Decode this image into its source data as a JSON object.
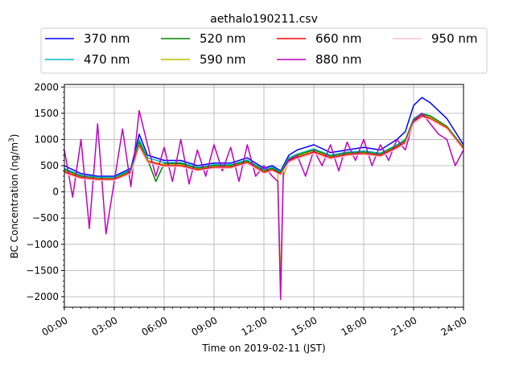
{
  "chart_data": {
    "type": "line",
    "title": "aethalo190211.csv",
    "xlabel": "Time on 2019-02-11 (JST)",
    "ylabel": "BC Concentration (ng/m",
    "ylabel_sup": "3",
    "ylabel_close": ")",
    "xlim": [
      "00:00",
      "24:00"
    ],
    "ylim": [
      -2200,
      2050
    ],
    "x_ticks": [
      "00:00",
      "03:00",
      "06:00",
      "09:00",
      "12:00",
      "15:00",
      "18:00",
      "21:00",
      "24:00"
    ],
    "y_ticks": [
      "2000",
      "1500",
      "1000",
      "500",
      "0",
      "−500",
      "−1000",
      "−1500",
      "−2000"
    ],
    "y_tick_values": [
      2000,
      1500,
      1000,
      500,
      0,
      -500,
      -1000,
      -1500,
      -2000
    ],
    "grid": true,
    "legend_position": "top-center",
    "series": [
      {
        "name": "370 nm",
        "color": "#0000ff",
        "x": [
          "00:00",
          "01:00",
          "02:00",
          "03:00",
          "04:00",
          "04:30",
          "05:00",
          "06:00",
          "07:00",
          "08:00",
          "09:00",
          "10:00",
          "11:00",
          "12:00",
          "12:30",
          "13:00",
          "13:30",
          "14:00",
          "15:00",
          "16:00",
          "17:00",
          "18:00",
          "19:00",
          "20:00",
          "20:30",
          "21:00",
          "21:30",
          "22:00",
          "23:00",
          "24:00"
        ],
        "values": [
          500,
          350,
          300,
          300,
          450,
          1100,
          700,
          600,
          600,
          500,
          550,
          550,
          650,
          450,
          500,
          400,
          700,
          800,
          900,
          750,
          800,
          850,
          800,
          1000,
          1150,
          1650,
          1800,
          1700,
          1400,
          900
        ]
      },
      {
        "name": "470 nm",
        "color": "#00bfbf",
        "x": [
          "00:00",
          "01:00",
          "02:00",
          "03:00",
          "04:00",
          "04:30",
          "05:00",
          "06:00",
          "07:00",
          "08:00",
          "09:00",
          "10:00",
          "11:00",
          "12:00",
          "12:30",
          "13:00",
          "13:30",
          "14:00",
          "15:00",
          "16:00",
          "17:00",
          "18:00",
          "19:00",
          "20:00",
          "20:30",
          "21:00",
          "21:30",
          "22:00",
          "23:00",
          "24:00"
        ],
        "values": [
          450,
          320,
          280,
          280,
          420,
          1000,
          650,
          560,
          560,
          470,
          520,
          520,
          610,
          420,
          470,
          380,
          650,
          720,
          820,
          700,
          760,
          780,
          740,
          900,
          1000,
          1400,
          1500,
          1450,
          1250,
          850
        ]
      },
      {
        "name": "520 nm",
        "color": "#008000",
        "x": [
          "00:00",
          "01:00",
          "02:00",
          "03:00",
          "04:00",
          "04:30",
          "05:00",
          "05:30",
          "06:00",
          "07:00",
          "08:00",
          "09:00",
          "10:00",
          "11:00",
          "12:00",
          "12:30",
          "13:00",
          "13:30",
          "14:00",
          "15:00",
          "16:00",
          "17:00",
          "18:00",
          "19:00",
          "20:00",
          "20:30",
          "21:00",
          "21:30",
          "22:00",
          "23:00",
          "24:00"
        ],
        "values": [
          420,
          300,
          260,
          260,
          400,
          950,
          620,
          200,
          540,
          540,
          450,
          500,
          500,
          590,
          400,
          450,
          360,
          620,
          700,
          800,
          680,
          740,
          760,
          720,
          880,
          980,
          1380,
          1480,
          1450,
          1250,
          850
        ]
      },
      {
        "name": "590 nm",
        "color": "#bfbf00",
        "x": [
          "00:00",
          "01:00",
          "02:00",
          "03:00",
          "04:00",
          "04:30",
          "05:00",
          "06:00",
          "07:00",
          "08:00",
          "09:00",
          "10:00",
          "11:00",
          "12:00",
          "12:30",
          "12:50",
          "13:00",
          "13:10",
          "13:30",
          "14:00",
          "15:00",
          "16:00",
          "17:00",
          "18:00",
          "19:00",
          "20:00",
          "20:30",
          "21:00",
          "21:30",
          "22:00",
          "23:00",
          "24:00"
        ],
        "values": [
          400,
          280,
          250,
          250,
          380,
          900,
          600,
          520,
          520,
          430,
          480,
          480,
          570,
          380,
          430,
          350,
          -1700,
          300,
          600,
          680,
          780,
          660,
          720,
          740,
          700,
          860,
          960,
          1360,
          1460,
          1420,
          1230,
          830
        ]
      },
      {
        "name": "660 nm",
        "color": "#ff0000",
        "x": [
          "00:00",
          "01:00",
          "02:00",
          "03:00",
          "04:00",
          "04:30",
          "05:00",
          "06:00",
          "07:00",
          "08:00",
          "09:00",
          "10:00",
          "11:00",
          "12:00",
          "12:30",
          "13:00",
          "13:30",
          "14:00",
          "15:00",
          "16:00",
          "17:00",
          "18:00",
          "19:00",
          "20:00",
          "20:30",
          "21:00",
          "21:30",
          "22:00",
          "23:00",
          "24:00"
        ],
        "values": [
          380,
          270,
          240,
          240,
          370,
          880,
          580,
          500,
          500,
          420,
          470,
          470,
          560,
          370,
          420,
          340,
          590,
          660,
          760,
          650,
          710,
          730,
          690,
          850,
          950,
          1340,
          1450,
          1400,
          1220,
          820
        ]
      },
      {
        "name": "880 nm",
        "color": "#bf00bf",
        "x": [
          "00:00",
          "00:30",
          "01:00",
          "01:30",
          "02:00",
          "02:30",
          "03:00",
          "03:30",
          "04:00",
          "04:30",
          "05:00",
          "05:30",
          "06:00",
          "06:30",
          "07:00",
          "07:30",
          "08:00",
          "08:30",
          "09:00",
          "09:30",
          "10:00",
          "10:30",
          "11:00",
          "11:30",
          "12:00",
          "12:30",
          "12:50",
          "13:00",
          "13:10",
          "13:30",
          "14:00",
          "14:30",
          "15:00",
          "15:30",
          "16:00",
          "16:30",
          "17:00",
          "17:30",
          "18:00",
          "18:30",
          "19:00",
          "19:30",
          "20:00",
          "20:30",
          "21:00",
          "21:30",
          "22:00",
          "22:30",
          "23:00",
          "23:30",
          "24:00"
        ],
        "values": [
          800,
          -100,
          1000,
          -700,
          1300,
          -800,
          200,
          1200,
          100,
          1550,
          900,
          300,
          850,
          200,
          1000,
          150,
          800,
          300,
          900,
          400,
          850,
          200,
          900,
          300,
          500,
          300,
          200,
          -2050,
          400,
          600,
          700,
          300,
          800,
          500,
          900,
          400,
          950,
          600,
          1000,
          500,
          900,
          600,
          1000,
          800,
          1350,
          1500,
          1300,
          1100,
          1000,
          500,
          800
        ]
      },
      {
        "name": "950 nm",
        "color": "#ffc0cb",
        "x": [
          "00:00",
          "01:00",
          "02:00",
          "03:00",
          "04:00",
          "04:30",
          "05:00",
          "06:00",
          "07:00",
          "08:00",
          "09:00",
          "10:00",
          "11:00",
          "12:00",
          "12:30",
          "13:00",
          "13:30",
          "14:00",
          "15:00",
          "16:00",
          "17:00",
          "18:00",
          "19:00",
          "20:00",
          "20:30",
          "21:00",
          "21:30",
          "22:00",
          "23:00",
          "24:00"
        ],
        "values": [
          350,
          250,
          220,
          220,
          350,
          850,
          560,
          480,
          480,
          400,
          450,
          450,
          540,
          350,
          400,
          320,
          560,
          630,
          730,
          620,
          690,
          710,
          670,
          820,
          920,
          1300,
          1420,
          1380,
          1200,
          800
        ]
      }
    ]
  }
}
